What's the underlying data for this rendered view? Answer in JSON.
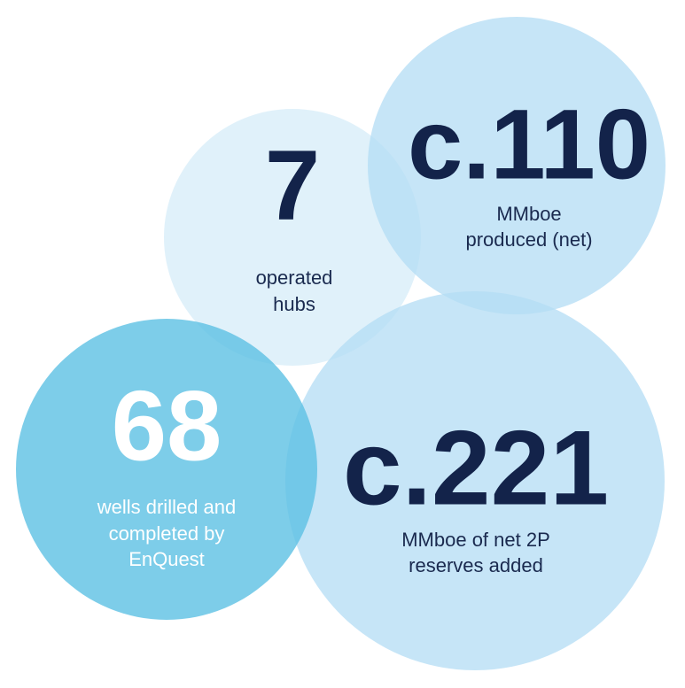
{
  "bubbles": [
    {
      "figure": "7",
      "lines": [
        "operated",
        "hubs"
      ]
    },
    {
      "figure": "c.110",
      "lines": [
        "MMboe",
        "produced (net)"
      ]
    },
    {
      "figure": "c.221",
      "lines": [
        "MMboe of net 2P",
        "reserves added"
      ]
    },
    {
      "figure": "68",
      "lines": [
        "wells drilled and",
        "completed by",
        "EnQuest"
      ]
    }
  ]
}
